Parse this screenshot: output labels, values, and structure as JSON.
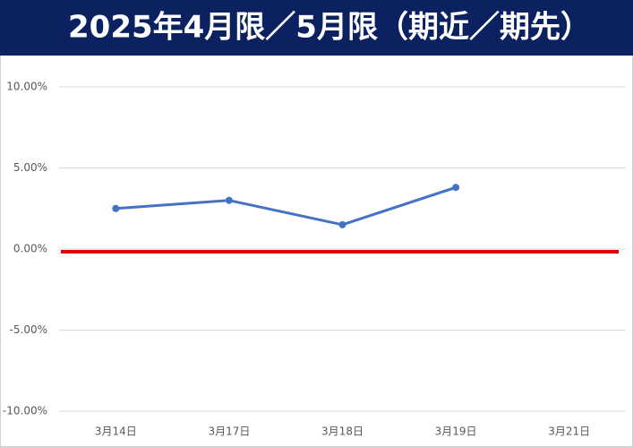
{
  "chart_data": {
    "type": "line",
    "title": "2025年4月限／5月限（期近／期先）",
    "title_background": "#0b2160",
    "categories": [
      "3月14日",
      "3月17日",
      "3月18日",
      "3月19日",
      "3月21日"
    ],
    "series": [
      {
        "color": "#4472c4",
        "values": [
          2.5,
          3.0,
          1.5,
          3.8,
          null
        ]
      }
    ],
    "ylim": [
      -10,
      10
    ],
    "yticks": [
      {
        "value": -10,
        "label": "-10.00%"
      },
      {
        "value": -5,
        "label": "-5.00%"
      },
      {
        "value": 0,
        "label": "0.00%"
      },
      {
        "value": 5,
        "label": "5.00%"
      },
      {
        "value": 10,
        "label": "10.00%"
      }
    ],
    "grid": true,
    "reference_line": {
      "value": 0,
      "color": "#e00000"
    }
  }
}
